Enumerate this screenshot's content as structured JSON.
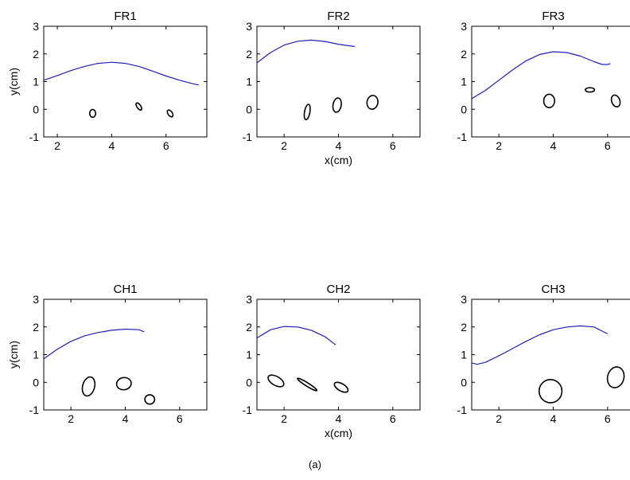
{
  "caption": "(a)",
  "colors": {
    "curve": "#1f1fbf",
    "ellipse": "#000000",
    "axes": "#000000"
  },
  "chart_data": [
    {
      "type": "line",
      "title": "FR1",
      "xlabel": "",
      "ylabel": "y(cm)",
      "xlim": [
        1.5,
        7.5
      ],
      "ylim": [
        -1,
        3
      ],
      "xticks": [
        2,
        4,
        6
      ],
      "yticks": [
        -1,
        0,
        1,
        2,
        3
      ],
      "series": [
        {
          "x": [
            1.5,
            2.0,
            2.5,
            3.0,
            3.5,
            4.0,
            4.5,
            5.0,
            5.5,
            6.0,
            6.5,
            7.0,
            7.2
          ],
          "y": [
            1.05,
            1.22,
            1.4,
            1.55,
            1.66,
            1.7,
            1.66,
            1.55,
            1.38,
            1.2,
            1.05,
            0.92,
            0.88
          ]
        }
      ],
      "ellipses": [
        {
          "cx": 3.3,
          "cy": -0.15,
          "rx": 0.11,
          "ry": 0.14,
          "angle": 0
        },
        {
          "cx": 5.0,
          "cy": 0.1,
          "rx": 0.07,
          "ry": 0.15,
          "angle": -35
        },
        {
          "cx": 6.15,
          "cy": -0.15,
          "rx": 0.08,
          "ry": 0.14,
          "angle": -35
        }
      ]
    },
    {
      "type": "line",
      "title": "FR2",
      "xlabel": "x(cm)",
      "ylabel": "",
      "xlim": [
        1,
        7
      ],
      "ylim": [
        -1,
        3
      ],
      "xticks": [
        2,
        4,
        6
      ],
      "yticks": [
        -1,
        0,
        1,
        2,
        3
      ],
      "series": [
        {
          "x": [
            1.0,
            1.5,
            2.0,
            2.5,
            3.0,
            3.5,
            4.0,
            4.5,
            4.6
          ],
          "y": [
            1.68,
            2.05,
            2.32,
            2.46,
            2.5,
            2.45,
            2.35,
            2.28,
            2.27
          ]
        }
      ],
      "ellipses": [
        {
          "cx": 2.85,
          "cy": -0.1,
          "rx": 0.1,
          "ry": 0.28,
          "angle": 10
        },
        {
          "cx": 3.95,
          "cy": 0.15,
          "rx": 0.15,
          "ry": 0.26,
          "angle": 10
        },
        {
          "cx": 5.25,
          "cy": 0.25,
          "rx": 0.2,
          "ry": 0.25,
          "angle": 10
        }
      ]
    },
    {
      "type": "line",
      "title": "FR3",
      "xlabel": "",
      "ylabel": "",
      "xlim": [
        1,
        7
      ],
      "ylim": [
        -1,
        3
      ],
      "xticks": [
        2,
        4,
        6
      ],
      "yticks": [
        -1,
        0,
        1,
        2,
        3
      ],
      "series": [
        {
          "x": [
            1.0,
            1.5,
            2.0,
            2.5,
            3.0,
            3.5,
            4.0,
            4.5,
            5.0,
            5.5,
            5.8,
            6.0,
            6.1
          ],
          "y": [
            0.38,
            0.68,
            1.05,
            1.42,
            1.75,
            1.98,
            2.08,
            2.05,
            1.92,
            1.72,
            1.62,
            1.62,
            1.65
          ]
        }
      ],
      "ellipses": [
        {
          "cx": 3.85,
          "cy": 0.3,
          "rx": 0.2,
          "ry": 0.24,
          "angle": 0
        },
        {
          "cx": 5.35,
          "cy": 0.7,
          "rx": 0.17,
          "ry": 0.08,
          "angle": 0
        },
        {
          "cx": 6.3,
          "cy": 0.3,
          "rx": 0.15,
          "ry": 0.22,
          "angle": -20
        }
      ]
    },
    {
      "type": "line",
      "title": "CH1",
      "xlabel": "",
      "ylabel": "y(cm)",
      "xlim": [
        1,
        7
      ],
      "ylim": [
        -1,
        3
      ],
      "xticks": [
        2,
        4,
        6
      ],
      "yticks": [
        -1,
        0,
        1,
        2,
        3
      ],
      "series": [
        {
          "x": [
            1.0,
            1.5,
            2.0,
            2.5,
            3.0,
            3.5,
            4.0,
            4.5,
            4.7
          ],
          "y": [
            0.85,
            1.2,
            1.48,
            1.68,
            1.8,
            1.88,
            1.92,
            1.9,
            1.82
          ]
        }
      ],
      "ellipses": [
        {
          "cx": 2.65,
          "cy": -0.15,
          "rx": 0.22,
          "ry": 0.35,
          "angle": 15
        },
        {
          "cx": 3.95,
          "cy": -0.05,
          "rx": 0.27,
          "ry": 0.22,
          "angle": -10
        },
        {
          "cx": 4.9,
          "cy": -0.62,
          "rx": 0.18,
          "ry": 0.17,
          "angle": 0
        }
      ]
    },
    {
      "type": "line",
      "title": "CH2",
      "xlabel": "x(cm)",
      "ylabel": "",
      "xlim": [
        1,
        7
      ],
      "ylim": [
        -1,
        3
      ],
      "xticks": [
        2,
        4,
        6
      ],
      "yticks": [
        -1,
        0,
        1,
        2,
        3
      ],
      "series": [
        {
          "x": [
            1.0,
            1.5,
            2.0,
            2.5,
            3.0,
            3.5,
            3.9
          ],
          "y": [
            1.6,
            1.9,
            2.02,
            2.0,
            1.88,
            1.65,
            1.35
          ]
        }
      ],
      "ellipses": [
        {
          "cx": 1.7,
          "cy": 0.05,
          "rx": 0.32,
          "ry": 0.16,
          "angle": 30
        },
        {
          "cx": 2.85,
          "cy": -0.08,
          "rx": 0.42,
          "ry": 0.06,
          "angle": 32
        },
        {
          "cx": 4.1,
          "cy": -0.18,
          "rx": 0.28,
          "ry": 0.13,
          "angle": 30
        }
      ]
    },
    {
      "type": "line",
      "title": "CH3",
      "xlabel": "",
      "ylabel": "",
      "xlim": [
        1,
        7
      ],
      "ylim": [
        -1,
        3
      ],
      "xticks": [
        2,
        4,
        6
      ],
      "yticks": [
        -1,
        0,
        1,
        2,
        3
      ],
      "series": [
        {
          "x": [
            1.0,
            1.2,
            1.5,
            2.0,
            2.5,
            3.0,
            3.5,
            4.0,
            4.5,
            5.0,
            5.5,
            6.0
          ],
          "y": [
            0.7,
            0.65,
            0.72,
            0.96,
            1.22,
            1.48,
            1.72,
            1.9,
            2.0,
            2.04,
            2.0,
            1.75
          ]
        }
      ],
      "ellipses": [
        {
          "cx": 3.9,
          "cy": -0.32,
          "rx": 0.42,
          "ry": 0.42,
          "angle": 0
        },
        {
          "cx": 6.3,
          "cy": 0.18,
          "rx": 0.3,
          "ry": 0.38,
          "angle": 15
        }
      ]
    }
  ]
}
